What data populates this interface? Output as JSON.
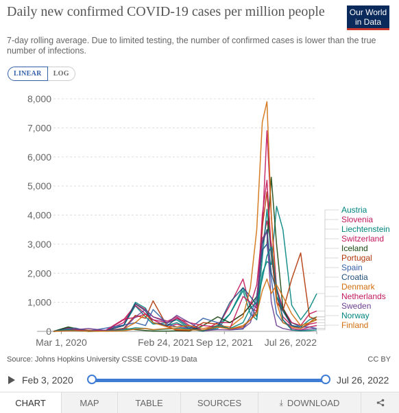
{
  "header": {
    "title": "Daily new confirmed COVID-19 cases per million people",
    "subtitle": "7-day rolling average. Due to limited testing, the number of confirmed cases is lower than the true number of infections.",
    "logo_line1": "Our World",
    "logo_line2": "in Data"
  },
  "scale_toggle": {
    "linear": "LINEAR",
    "log": "LOG",
    "selected": "LINEAR"
  },
  "footer": {
    "source": "Source: Johns Hopkins University CSSE COVID-19 Data",
    "license": "CC BY"
  },
  "timeline": {
    "start": "Feb 3, 2020",
    "end": "Jul 26, 2022"
  },
  "tabs": [
    {
      "label": "CHART",
      "active": true
    },
    {
      "label": "MAP"
    },
    {
      "label": "TABLE"
    },
    {
      "label": "SOURCES"
    },
    {
      "label": "DOWNLOAD",
      "icon": "download-icon"
    },
    {
      "label": "",
      "icon": "share-icon"
    }
  ],
  "chart_data": {
    "type": "line",
    "title": "Daily new confirmed COVID-19 cases per million people",
    "xlabel": "",
    "ylabel": "",
    "scale": "linear",
    "grid": true,
    "legend_placement": "right, labels at line ends",
    "x_range": [
      "2020-02-03",
      "2022-07-26"
    ],
    "ylim": [
      0,
      8000
    ],
    "y_ticks": [
      0,
      1000,
      2000,
      3000,
      4000,
      5000,
      6000,
      7000,
      8000
    ],
    "y_tick_labels": [
      "0",
      "1,000",
      "2,000",
      "3,000",
      "4,000",
      "5,000",
      "6,000",
      "7,000",
      "8,000"
    ],
    "x_ticks": [
      "2020-03-01",
      "2021-02-24",
      "2021-09-12",
      "2022-07-26"
    ],
    "x_tick_labels": [
      "Mar 1, 2020",
      "Feb 24, 2021",
      "Sep 12, 2021",
      "Jul 26, 2022"
    ],
    "x": [
      "2020-02-03",
      "2020-03-25",
      "2020-04-20",
      "2020-06-01",
      "2020-08-01",
      "2020-10-01",
      "2020-11-10",
      "2020-12-15",
      "2021-01-10",
      "2021-03-01",
      "2021-04-01",
      "2021-05-15",
      "2021-07-01",
      "2021-08-20",
      "2021-10-01",
      "2021-11-15",
      "2021-12-10",
      "2022-01-01",
      "2022-01-20",
      "2022-02-05",
      "2022-02-20",
      "2022-03-10",
      "2022-04-01",
      "2022-05-01",
      "2022-06-01",
      "2022-07-01",
      "2022-07-26"
    ],
    "series": [
      {
        "name": "Austria",
        "color": "#00847e",
        "values": [
          0,
          100,
          40,
          10,
          30,
          200,
          880,
          500,
          250,
          300,
          400,
          100,
          20,
          100,
          600,
          1400,
          600,
          400,
          2000,
          2400,
          2300,
          4300,
          3500,
          900,
          400,
          800,
          1300
        ]
      },
      {
        "name": "Slovenia",
        "color": "#c2185b",
        "values": [
          0,
          40,
          30,
          5,
          20,
          300,
          950,
          750,
          500,
          350,
          500,
          200,
          20,
          150,
          900,
          1800,
          800,
          700,
          3000,
          3800,
          3000,
          1200,
          500,
          200,
          100,
          250,
          300
        ]
      },
      {
        "name": "Liechtenstein",
        "color": "#00847e",
        "values": [
          0,
          150,
          30,
          0,
          20,
          200,
          1000,
          800,
          300,
          200,
          300,
          100,
          0,
          200,
          600,
          1500,
          900,
          500,
          2500,
          4200,
          2600,
          1200,
          700,
          300,
          150,
          400,
          500
        ]
      },
      {
        "name": "Switzerland",
        "color": "#c2185b",
        "values": [
          0,
          120,
          50,
          5,
          20,
          400,
          900,
          600,
          400,
          150,
          250,
          100,
          10,
          300,
          300,
          600,
          900,
          1600,
          3500,
          6900,
          4000,
          1500,
          800,
          300,
          200,
          600,
          700
        ]
      },
      {
        "name": "Iceland",
        "color": "#18470f",
        "values": [
          0,
          150,
          100,
          0,
          10,
          100,
          60,
          30,
          10,
          10,
          20,
          10,
          200,
          500,
          300,
          600,
          900,
          1200,
          2800,
          3000,
          5300,
          3000,
          800,
          200,
          100,
          300,
          400
        ]
      },
      {
        "name": "Portugal",
        "color": "#b13507",
        "values": [
          0,
          50,
          80,
          40,
          25,
          100,
          550,
          450,
          1050,
          150,
          40,
          30,
          300,
          250,
          80,
          150,
          400,
          700,
          3600,
          4800,
          2800,
          1000,
          700,
          1800,
          2700,
          500,
          400
        ]
      },
      {
        "name": "Spain",
        "color": "#3360a9",
        "values": [
          0,
          90,
          110,
          10,
          110,
          220,
          300,
          200,
          750,
          250,
          150,
          100,
          450,
          300,
          50,
          80,
          500,
          1200,
          2800,
          3000,
          1800,
          600,
          300,
          200,
          150,
          150,
          100
        ]
      },
      {
        "name": "Croatia",
        "color": "#1f4e79",
        "values": [
          0,
          30,
          20,
          5,
          30,
          200,
          950,
          700,
          300,
          200,
          450,
          150,
          20,
          150,
          1000,
          1500,
          1200,
          900,
          3000,
          3500,
          2000,
          1400,
          700,
          200,
          100,
          300,
          500
        ]
      },
      {
        "name": "Denmark",
        "color": "#d26e0d",
        "values": [
          0,
          50,
          40,
          10,
          20,
          80,
          300,
          600,
          300,
          150,
          150,
          200,
          100,
          200,
          150,
          500,
          1500,
          3500,
          7200,
          7900,
          4000,
          1000,
          300,
          150,
          100,
          300,
          500
        ]
      },
      {
        "name": "Netherlands",
        "color": "#c2185b",
        "values": [
          0,
          60,
          60,
          5,
          40,
          420,
          480,
          600,
          400,
          300,
          450,
          300,
          200,
          150,
          100,
          1200,
          1000,
          800,
          4000,
          5200,
          2800,
          1500,
          400,
          100,
          50,
          150,
          200
        ]
      },
      {
        "name": "Sweden",
        "color": "#6d3e91",
        "values": [
          0,
          30,
          60,
          100,
          30,
          80,
          500,
          750,
          500,
          300,
          550,
          300,
          20,
          60,
          50,
          100,
          300,
          1000,
          3200,
          3400,
          1000,
          200,
          100,
          40,
          30,
          80,
          100
        ]
      },
      {
        "name": "Norway",
        "color": "#00847e",
        "values": [
          0,
          60,
          20,
          5,
          10,
          50,
          120,
          100,
          50,
          80,
          100,
          80,
          20,
          200,
          100,
          300,
          800,
          1000,
          1800,
          2600,
          2900,
          1500,
          400,
          50,
          20,
          30,
          50
        ]
      },
      {
        "name": "Finland",
        "color": "#d26e0d",
        "values": [
          0,
          20,
          20,
          5,
          5,
          20,
          80,
          100,
          60,
          100,
          80,
          50,
          50,
          150,
          80,
          200,
          400,
          600,
          1400,
          1800,
          1300,
          1600,
          1200,
          600,
          200,
          300,
          400
        ]
      }
    ]
  }
}
